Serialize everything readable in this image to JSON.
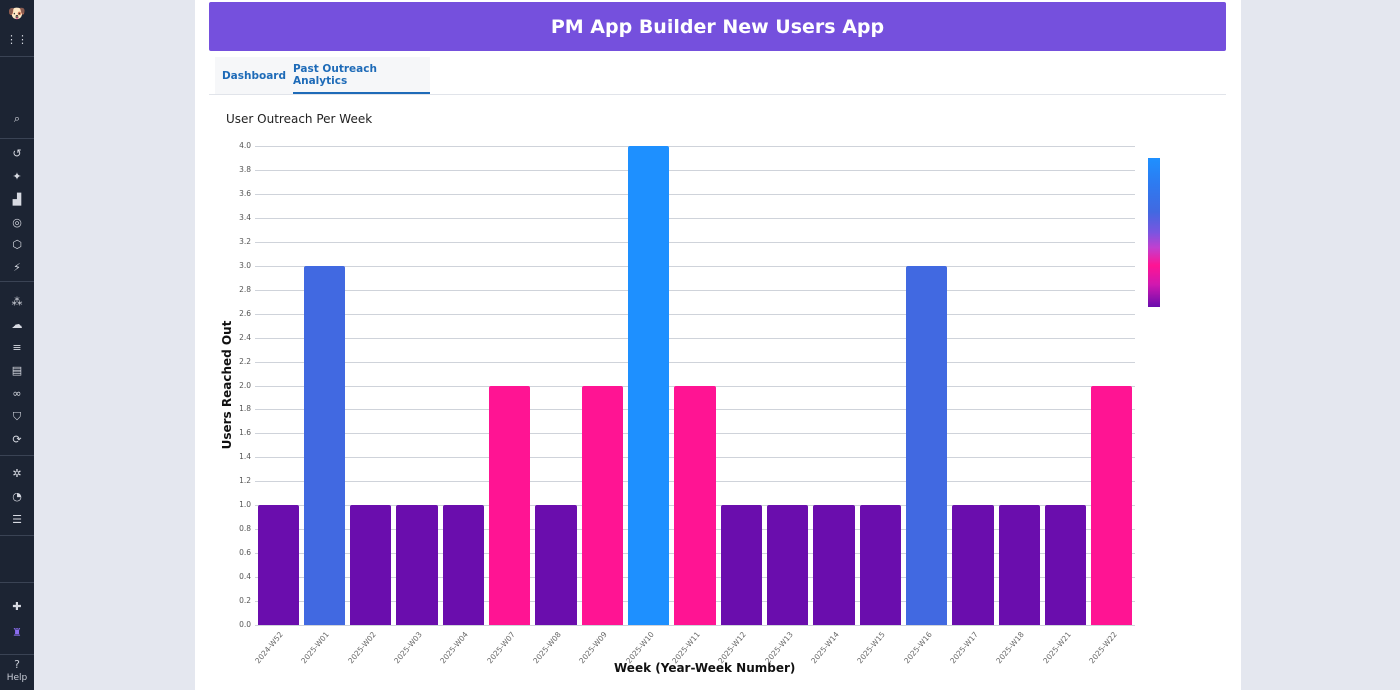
{
  "sidebar": {
    "icons": [
      "logo-icon",
      "apps-grid-icon",
      "search-icon",
      "history-icon",
      "sparkle-icon",
      "metrics-icon",
      "target-icon",
      "cube-icon",
      "lightning-icon",
      "nodes-icon",
      "cloud-icon",
      "logs-icon",
      "dashboards-icon",
      "link-icon",
      "security-icon",
      "refresh-icon",
      "bug-icon",
      "gauge-icon",
      "list-icon",
      "puzzle-icon",
      "app-builder-icon"
    ],
    "help_label": "Help"
  },
  "header": {
    "title": "PM App Builder New Users App"
  },
  "tabs": [
    {
      "label": "Dashboard",
      "active": false
    },
    {
      "label": "Past Outreach Analytics",
      "active": true
    }
  ],
  "colors": {
    "header_bg": "#7550dd",
    "tab_text": "#1e6bb8",
    "bar_1": "#6a0dad",
    "bar_2": "#ff1493",
    "bar_3": "#4169e1",
    "bar_4": "#1e90ff"
  },
  "chart_data": {
    "type": "bar",
    "title": "User Outreach Per Week",
    "xlabel": "Week (Year-Week Number)",
    "ylabel": "Users Reached Out",
    "ylim": [
      0,
      4.0
    ],
    "yticks": [
      "0.0",
      "0.2",
      "0.4",
      "0.6",
      "0.8",
      "1.0",
      "1.2",
      "1.4",
      "1.6",
      "1.8",
      "2.0",
      "2.2",
      "2.4",
      "2.6",
      "2.8",
      "3.0",
      "3.2",
      "3.4",
      "3.6",
      "3.8",
      "4.0"
    ],
    "grid": true,
    "legend": "colorbar (right)",
    "categories": [
      "2024-W52",
      "2025-W01",
      "2025-W02",
      "2025-W03",
      "2025-W04",
      "2025-W07",
      "2025-W08",
      "2025-W09",
      "2025-W10",
      "2025-W11",
      "2025-W12",
      "2025-W13",
      "2025-W14",
      "2025-W15",
      "2025-W16",
      "2025-W17",
      "2025-W18",
      "2025-W21",
      "2025-W22"
    ],
    "values": [
      1,
      3,
      1,
      1,
      1,
      2,
      1,
      2,
      4,
      2,
      1,
      1,
      1,
      1,
      3,
      1,
      1,
      1,
      2
    ]
  }
}
